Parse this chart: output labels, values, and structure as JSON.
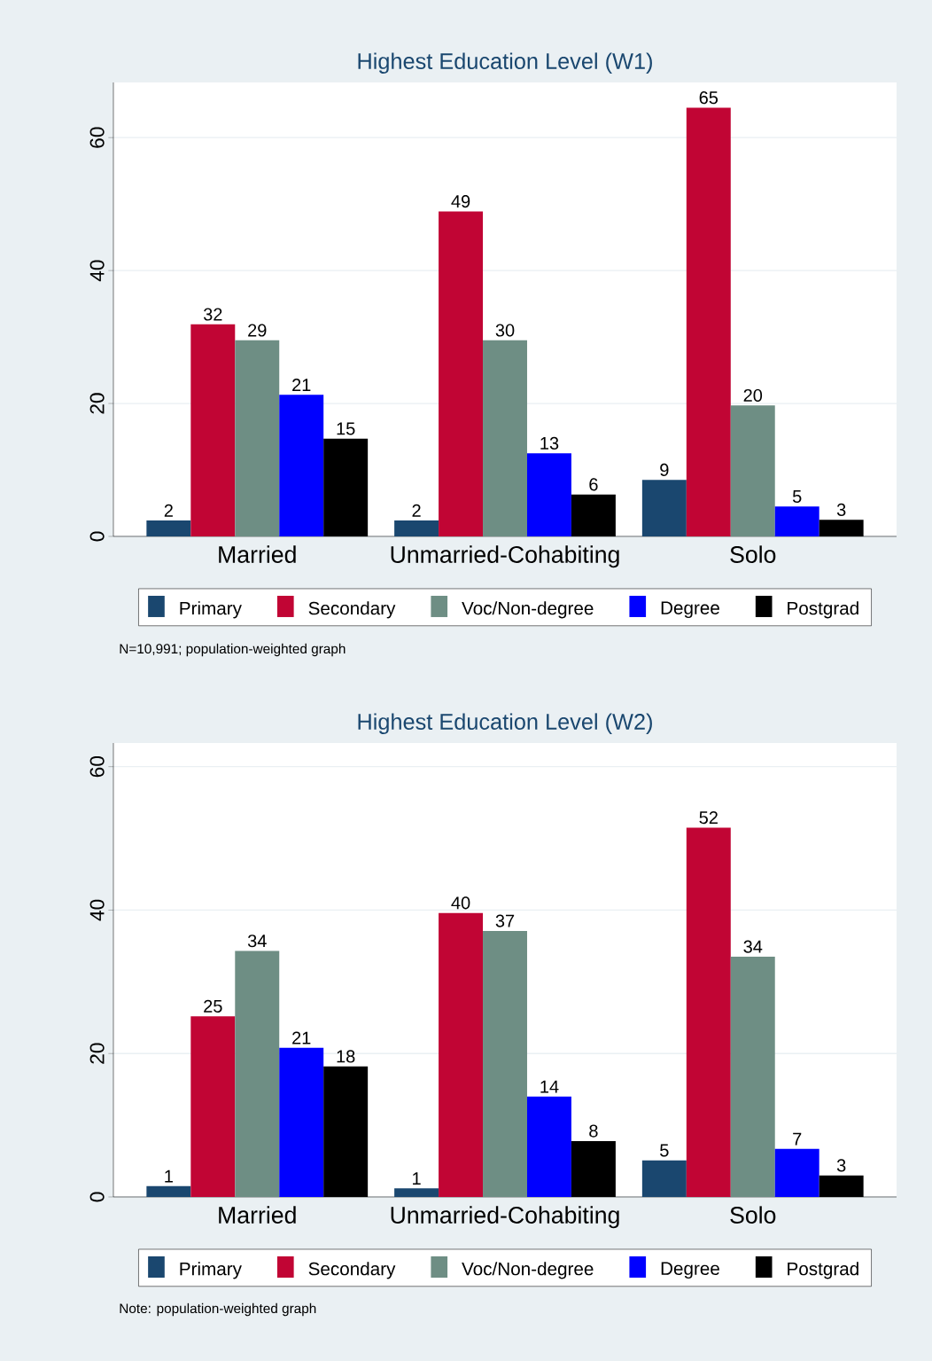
{
  "chart_data": [
    {
      "type": "bar",
      "title": "Highest Education Level (W1)",
      "categories": [
        "Married",
        "Unmarried-Cohabiting",
        "Solo"
      ],
      "series": [
        {
          "name": "Primary",
          "color": "#1a476f",
          "values": [
            2.4,
            2.4,
            8.5
          ],
          "value_labels": [
            "2",
            "2",
            "9"
          ]
        },
        {
          "name": "Secondary",
          "color": "#c10534",
          "values": [
            31.9,
            48.9,
            64.5
          ],
          "value_labels": [
            "32",
            "49",
            "65"
          ]
        },
        {
          "name": "Voc/Non-degree",
          "color": "#6e8e84",
          "values": [
            29.5,
            29.5,
            19.7
          ],
          "value_labels": [
            "29",
            "30",
            "20"
          ]
        },
        {
          "name": "Degree",
          "color": "#0000ff",
          "values": [
            21.3,
            12.5,
            4.5
          ],
          "value_labels": [
            "21",
            "13",
            "5"
          ]
        },
        {
          "name": "Postgrad",
          "color": "#000000",
          "values": [
            14.7,
            6.3,
            2.5
          ],
          "value_labels": [
            "15",
            "6",
            "3"
          ]
        }
      ],
      "ylim": [
        0,
        68.3
      ],
      "yticks": [
        0,
        20,
        40,
        60
      ],
      "grid": "y",
      "legend": "bottom",
      "annotations": [
        "N=10,991; population-weighted graph"
      ]
    },
    {
      "type": "bar",
      "title": "Highest Education Level (W2)",
      "categories": [
        "Married",
        "Unmarried-Cohabiting",
        "Solo"
      ],
      "series": [
        {
          "name": "Primary",
          "color": "#1a476f",
          "values": [
            1.5,
            1.2,
            5.1
          ],
          "value_labels": [
            "1",
            "1",
            "5"
          ]
        },
        {
          "name": "Secondary",
          "color": "#c10534",
          "values": [
            25.2,
            39.6,
            51.5
          ],
          "value_labels": [
            "25",
            "40",
            "52"
          ]
        },
        {
          "name": "Voc/Non-degree",
          "color": "#6e8e84",
          "values": [
            34.3,
            37.1,
            33.5
          ],
          "value_labels": [
            "34",
            "37",
            "34"
          ]
        },
        {
          "name": "Degree",
          "color": "#0000ff",
          "values": [
            20.8,
            14.0,
            6.7
          ],
          "value_labels": [
            "21",
            "14",
            "7"
          ]
        },
        {
          "name": "Postgrad",
          "color": "#000000",
          "values": [
            18.2,
            7.8,
            3.0
          ],
          "value_labels": [
            "18",
            "8",
            "3"
          ]
        }
      ],
      "ylim": [
        0,
        63.3
      ],
      "yticks": [
        0,
        20,
        40,
        60
      ],
      "grid": "y",
      "legend": "bottom",
      "annotations": [
        "Note: population-weighted graph"
      ]
    }
  ]
}
